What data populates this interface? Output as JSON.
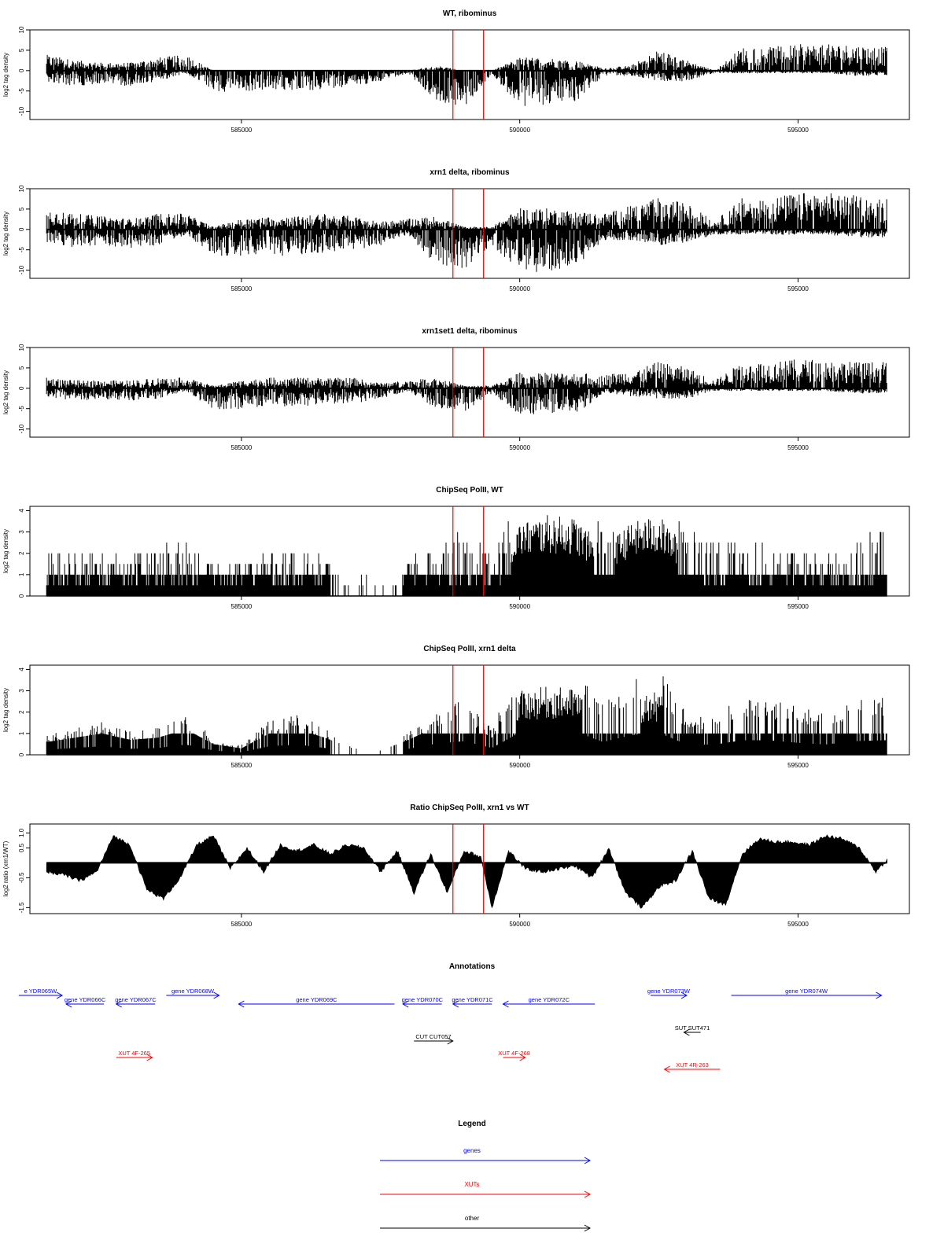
{
  "chart_data": [
    {
      "type": "bar",
      "title": "WT, ribominus",
      "xlabel": "",
      "ylabel": "log2 tag density",
      "xlim": [
        581200,
        597000
      ],
      "ylim": [
        -12,
        10
      ],
      "yticks": [
        10,
        5,
        0,
        -5,
        -10
      ],
      "xticks": [
        585000,
        590000,
        595000
      ],
      "grid": false,
      "markers_x": [
        588800,
        589350
      ],
      "series": [
        {
          "strand": "+",
          "color": "#000000",
          "x": [
            581500,
            582000,
            582500,
            583000,
            583500,
            584000,
            584500,
            585000,
            585500,
            586000,
            586500,
            587000,
            587500,
            588000,
            588500,
            589000,
            589500,
            590000,
            590500,
            591000,
            591500,
            592000,
            592500,
            593000,
            593500,
            594000,
            594500,
            595000,
            595500,
            596000,
            596500
          ],
          "values": [
            3,
            2,
            1.5,
            1.5,
            2.5,
            3,
            0,
            0,
            0,
            0,
            0,
            0,
            0,
            0,
            1,
            0,
            0,
            2.5,
            2.5,
            2,
            0.5,
            1,
            4,
            2,
            0,
            4.5,
            4.5,
            5,
            5,
            5,
            4.5
          ]
        },
        {
          "strand": "-",
          "color": "#000000",
          "x": [
            581500,
            582000,
            582500,
            583000,
            583500,
            584000,
            584500,
            585000,
            585500,
            586000,
            586500,
            587000,
            587500,
            588000,
            588500,
            589000,
            589500,
            590000,
            590500,
            591000,
            591500,
            592000,
            592500,
            593000,
            593500,
            594000,
            594500,
            595000,
            595500,
            596000,
            596500
          ],
          "values": [
            -2,
            -3,
            -2.5,
            -3,
            -2,
            -0.5,
            -4,
            -4,
            -3.5,
            -4,
            -3.5,
            -3,
            -2,
            -0.5,
            -6,
            -7,
            -0.5,
            -7,
            -6.5,
            -6,
            -1,
            -1,
            -2,
            -2,
            -0.5,
            -0.5,
            -0.5,
            -0.5,
            -0.5,
            -1,
            -1
          ]
        }
      ]
    },
    {
      "type": "bar",
      "title": "xrn1 delta, ribominus",
      "xlabel": "",
      "ylabel": "log2 tag density",
      "xlim": [
        581200,
        597000
      ],
      "ylim": [
        -12,
        10
      ],
      "yticks": [
        10,
        5,
        0,
        -5,
        -10
      ],
      "xticks": [
        585000,
        590000,
        595000
      ],
      "grid": false,
      "markers_x": [
        588800,
        589350
      ],
      "series": [
        {
          "strand": "+",
          "color": "#000000",
          "x": [
            581500,
            582000,
            582500,
            583000,
            583500,
            584000,
            584500,
            585000,
            585500,
            586000,
            586500,
            587000,
            587500,
            588000,
            588500,
            589000,
            589500,
            590000,
            590500,
            591000,
            591500,
            592000,
            592500,
            593000,
            593500,
            594000,
            594500,
            595000,
            595500,
            596000,
            596500
          ],
          "values": [
            4,
            3,
            2.5,
            2,
            3,
            3,
            0.5,
            2,
            2.5,
            2.5,
            3,
            2.5,
            1.5,
            2,
            2.5,
            0.5,
            0.5,
            4,
            4,
            3.5,
            3,
            4.5,
            6,
            5,
            1.5,
            6,
            6,
            7,
            7,
            6.5,
            6
          ]
        },
        {
          "strand": "-",
          "color": "#000000",
          "x": [
            581500,
            582000,
            582500,
            583000,
            583500,
            584000,
            584500,
            585000,
            585500,
            586000,
            586500,
            587000,
            587500,
            588000,
            588500,
            589000,
            589500,
            590000,
            590500,
            591000,
            591500,
            592000,
            592500,
            593000,
            593500,
            594000,
            594500,
            595000,
            595500,
            596000,
            596500
          ],
          "values": [
            -2.5,
            -3.5,
            -3,
            -3.5,
            -3,
            -1,
            -5,
            -5,
            -5,
            -5,
            -4.5,
            -4,
            -3,
            -1,
            -7,
            -7.5,
            -3,
            -8,
            -8,
            -7.5,
            -2,
            -2,
            -3,
            -2.5,
            -1,
            -1,
            -1,
            -1,
            -1,
            -1.5,
            -1.5
          ]
        }
      ]
    },
    {
      "type": "bar",
      "title": "xrn1set1 delta, ribominus",
      "xlabel": "",
      "ylabel": "log2 tag density",
      "xlim": [
        581200,
        597000
      ],
      "ylim": [
        -12,
        10
      ],
      "yticks": [
        10,
        5,
        0,
        -5,
        -10
      ],
      "xticks": [
        585000,
        590000,
        595000
      ],
      "grid": false,
      "markers_x": [
        588800,
        589350
      ],
      "series": [
        {
          "strand": "+",
          "color": "#000000",
          "x": [
            581500,
            582000,
            582500,
            583000,
            583500,
            584000,
            584500,
            585000,
            585500,
            586000,
            586500,
            587000,
            587500,
            588000,
            588500,
            589000,
            589500,
            590000,
            590500,
            591000,
            591500,
            592000,
            592500,
            593000,
            593500,
            594000,
            594500,
            595000,
            595500,
            596000,
            596500
          ],
          "values": [
            2,
            1.5,
            1.5,
            1.5,
            2,
            2,
            0.5,
            1.5,
            2,
            2,
            2,
            2,
            1,
            1.5,
            2,
            0.5,
            0.5,
            3,
            3,
            3,
            2.5,
            3.5,
            5,
            4,
            1.5,
            5,
            5,
            5.5,
            5.5,
            5,
            5
          ]
        },
        {
          "strand": "-",
          "color": "#000000",
          "x": [
            581500,
            582000,
            582500,
            583000,
            583500,
            584000,
            584500,
            585000,
            585500,
            586000,
            586500,
            587000,
            587500,
            588000,
            588500,
            589000,
            589500,
            590000,
            590500,
            591000,
            591500,
            592000,
            592500,
            593000,
            593500,
            594000,
            594500,
            595000,
            595500,
            596000,
            596500
          ],
          "values": [
            -1.5,
            -2.5,
            -2,
            -2.5,
            -2,
            -0.5,
            -4,
            -4,
            -3.5,
            -3.5,
            -3,
            -3,
            -2,
            -0.5,
            -4,
            -4.5,
            -1,
            -5,
            -5,
            -5,
            -1,
            -1.5,
            -2,
            -2,
            -0.5,
            -0.5,
            -0.5,
            -0.5,
            -0.5,
            -1,
            -1
          ]
        }
      ]
    },
    {
      "type": "bar",
      "title": "ChipSeq PolII, WT",
      "xlabel": "",
      "ylabel": "log2 tag density",
      "xlim": [
        581200,
        597000
      ],
      "ylim": [
        0,
        4.2
      ],
      "yticks": [
        0,
        1,
        2,
        3,
        4
      ],
      "xticks": [
        585000,
        590000,
        595000
      ],
      "grid": false,
      "markers_x": [
        588800,
        589350
      ],
      "series": [
        {
          "color": "#000000",
          "x": [
            581500,
            582000,
            582500,
            583000,
            583500,
            584000,
            584500,
            585000,
            585500,
            586000,
            586500,
            587000,
            587500,
            588000,
            588500,
            589000,
            589500,
            590000,
            590500,
            591000,
            591500,
            592000,
            592500,
            593000,
            593500,
            594000,
            594500,
            595000,
            595500,
            596000,
            596500
          ],
          "values": [
            1.2,
            1.5,
            1.2,
            1.2,
            1.5,
            1.5,
            1,
            1,
            1.2,
            1.5,
            1.2,
            0.5,
            0.3,
            1,
            1.5,
            1.8,
            1.2,
            3,
            3.3,
            3.2,
            2,
            3,
            3.3,
            2,
            1.8,
            1.5,
            1.5,
            1.2,
            1.2,
            1.5,
            2
          ]
        }
      ]
    },
    {
      "type": "bar",
      "title": "ChipSeq PolII, xrn1 delta",
      "xlabel": "",
      "ylabel": "log2 tag density",
      "xlim": [
        581200,
        597000
      ],
      "ylim": [
        0,
        4.2
      ],
      "yticks": [
        0,
        1,
        2,
        3,
        4
      ],
      "xticks": [
        585000,
        590000,
        595000
      ],
      "grid": false,
      "markers_x": [
        588800,
        589350
      ],
      "series": [
        {
          "color": "#000000",
          "x": [
            581500,
            582000,
            582500,
            583000,
            583500,
            584000,
            584500,
            585000,
            585500,
            586000,
            586500,
            587000,
            587500,
            588000,
            588500,
            589000,
            589500,
            590000,
            590500,
            591000,
            591500,
            592000,
            592500,
            593000,
            593500,
            594000,
            594500,
            595000,
            595500,
            596000,
            596500
          ],
          "values": [
            0.6,
            0.8,
            1,
            0.7,
            0.8,
            1.2,
            0.5,
            0.3,
            1,
            1.2,
            0.8,
            0.3,
            0.2,
            0.7,
            1.3,
            1.6,
            0.8,
            2.6,
            2.8,
            2.7,
            1.5,
            2.3,
            2.6,
            1.2,
            1.2,
            1.7,
            1.7,
            1.4,
            1.2,
            1.6,
            1.7
          ]
        }
      ]
    },
    {
      "type": "area",
      "title": "Ratio ChipSeq PolII, xrn1 vs WT",
      "xlabel": "",
      "ylabel": "log2 ratio (xrn1/WT)",
      "xlim": [
        581200,
        597000
      ],
      "ylim": [
        -1.7,
        1.3
      ],
      "yticks": [
        1.0,
        0.5,
        -0.5,
        -1.5
      ],
      "ytick_labels": [
        "1.0",
        "0.5",
        "-0.5",
        "-1.5"
      ],
      "xticks": [
        585000,
        590000,
        595000
      ],
      "grid": false,
      "markers_x": [
        588800,
        589350
      ],
      "series": [
        {
          "color": "#000000",
          "x": [
            581500,
            581800,
            582100,
            582400,
            582700,
            583000,
            583300,
            583600,
            583900,
            584200,
            584500,
            584800,
            585100,
            585400,
            585700,
            586000,
            586300,
            586600,
            586900,
            587200,
            587500,
            587800,
            588100,
            588400,
            588700,
            589000,
            589300,
            589500,
            589800,
            590100,
            590400,
            590700,
            591000,
            591300,
            591600,
            591900,
            592200,
            592500,
            592800,
            593100,
            593400,
            593700,
            594000,
            594300,
            594600,
            594900,
            595200,
            595500,
            595800,
            596100,
            596400,
            596600
          ],
          "values": [
            -0.3,
            -0.4,
            -0.6,
            -0.3,
            0.9,
            0.6,
            -0.9,
            -1.2,
            -0.5,
            0.6,
            0.9,
            -0.2,
            0.5,
            -0.3,
            0.6,
            0.4,
            0.6,
            0.3,
            0.6,
            0.5,
            -0.3,
            0.4,
            -1.0,
            0.3,
            -1.0,
            0.4,
            0.2,
            -1.5,
            0.4,
            -0.2,
            -0.3,
            -0.2,
            -0.1,
            -0.5,
            0.5,
            -1.0,
            -1.5,
            -0.8,
            -0.6,
            0.4,
            -1.2,
            -1.4,
            0.3,
            0.8,
            0.7,
            0.7,
            0.6,
            0.9,
            0.8,
            0.5,
            -0.3,
            0.1
          ]
        }
      ]
    }
  ],
  "annotations": {
    "title": "Annotations",
    "genes": [
      {
        "label": "e YDR065W",
        "x1": 581000,
        "x2": 581780,
        "strand": "+",
        "row": 1,
        "color": "#0000ff"
      },
      {
        "label": "gene YDR066C",
        "x1": 581850,
        "x2": 582530,
        "strand": "-",
        "row": 2,
        "color": "#0000ff"
      },
      {
        "label": "gene YDR067C",
        "x1": 582750,
        "x2": 583450,
        "strand": "-",
        "row": 2,
        "color": "#0000ff"
      },
      {
        "label": "gene YDR068W",
        "x1": 583650,
        "x2": 584600,
        "strand": "+",
        "row": 1,
        "color": "#0000ff"
      },
      {
        "label": "gene YDR069C",
        "x1": 584950,
        "x2": 587750,
        "strand": "-",
        "row": 2,
        "color": "#0000ff"
      },
      {
        "label": "gene YDR070C",
        "x1": 587900,
        "x2": 588600,
        "strand": "-",
        "row": 2,
        "color": "#0000ff"
      },
      {
        "label": "gene YDR071C",
        "x1": 588800,
        "x2": 589500,
        "strand": "-",
        "row": 2,
        "color": "#0000ff"
      },
      {
        "label": "gene YDR072C",
        "x1": 589700,
        "x2": 591350,
        "strand": "-",
        "row": 2,
        "color": "#0000ff"
      },
      {
        "label": "gene YDR073W",
        "x1": 592350,
        "x2": 593000,
        "strand": "+",
        "row": 1,
        "color": "#0000ff"
      },
      {
        "label": "gene YDR074W",
        "x1": 593800,
        "x2": 596500,
        "strand": "+",
        "row": 1,
        "color": "#0000ff"
      }
    ],
    "other": [
      {
        "label": "CUT CUT057",
        "x1": 588100,
        "x2": 588800,
        "strand": "+",
        "row": 4,
        "color": "#000000"
      },
      {
        "label": "SUT SUT471",
        "x1": 592950,
        "x2": 593250,
        "strand": "-",
        "row": 3,
        "color": "#000000"
      }
    ],
    "xuts": [
      {
        "label": "XUT 4F-265",
        "x1": 582750,
        "x2": 583400,
        "strand": "+",
        "row": 5,
        "color": "#ff0000"
      },
      {
        "label": "XUT 4F-268",
        "x1": 589700,
        "x2": 590100,
        "strand": "+",
        "row": 5,
        "color": "#ff0000"
      },
      {
        "label": "XUT 4R-263",
        "x1": 592600,
        "x2": 593600,
        "strand": "-",
        "row": 6,
        "color": "#ff0000"
      }
    ]
  },
  "legend": {
    "title": "Legend",
    "items": [
      {
        "label": "genes",
        "color": "#0000ff"
      },
      {
        "label": "XUTs",
        "color": "#ff0000"
      },
      {
        "label": "other",
        "color": "#000000"
      }
    ]
  },
  "colors": {
    "marker_line": "#ff0000",
    "gene": "#0000ff",
    "xut": "#ff0000",
    "other": "#000000",
    "data": "#000000"
  }
}
